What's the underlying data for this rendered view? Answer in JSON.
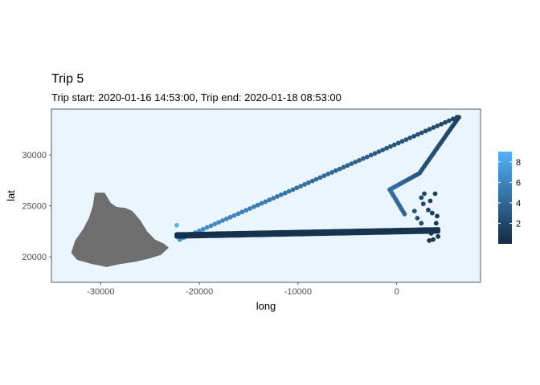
{
  "chart_data": {
    "type": "scatter",
    "title": "Trip 5",
    "subtitle": "Trip start: 2020-01-16 14:53:00, Trip end: 2020-01-18 08:53:00",
    "xlabel": "long",
    "ylabel": "lat",
    "xlim": [
      -35000,
      8500
    ],
    "ylim": [
      17500,
      34500
    ],
    "x_ticks": [
      -30000,
      -20000,
      -10000,
      0
    ],
    "y_ticks": [
      20000,
      25000,
      30000
    ],
    "x_tick_labels": [
      "-30000",
      "-20000",
      "-10000",
      "0"
    ],
    "y_tick_labels": [
      "20000",
      "25000",
      "30000"
    ],
    "panel_background": "#ebf5fe",
    "grid": false,
    "legend": {
      "type": "colorbar",
      "placement": "right",
      "range": [
        0,
        9
      ],
      "ticks": [
        2,
        4,
        6,
        8
      ],
      "tick_labels": [
        "2",
        "4",
        "6",
        "8"
      ],
      "low_color": "#132b43",
      "high_color": "#56b1f7"
    },
    "land_color": "#6e6e6e",
    "island_outline": [
      [
        -30600,
        26300
      ],
      [
        -29600,
        26300
      ],
      [
        -29300,
        25800
      ],
      [
        -29000,
        25300
      ],
      [
        -28400,
        24900
      ],
      [
        -27500,
        24800
      ],
      [
        -26800,
        24500
      ],
      [
        -26000,
        23600
      ],
      [
        -25300,
        22500
      ],
      [
        -24500,
        21700
      ],
      [
        -23600,
        21300
      ],
      [
        -23100,
        20900
      ],
      [
        -23900,
        20200
      ],
      [
        -25200,
        19800
      ],
      [
        -26600,
        19500
      ],
      [
        -28000,
        19300
      ],
      [
        -29400,
        19000
      ],
      [
        -30900,
        19300
      ],
      [
        -32400,
        19700
      ],
      [
        -33000,
        20400
      ],
      [
        -32600,
        21600
      ],
      [
        -31800,
        22700
      ],
      [
        -31200,
        23800
      ],
      [
        -30800,
        25000
      ]
    ],
    "series": [
      {
        "segments": [
          {
            "from": [
              -22000,
              21700
            ],
            "to": [
              6100,
              33700
            ],
            "n": 72,
            "color_from": 7,
            "color_to": 1.7
          },
          {
            "from": [
              6300,
              33700
            ],
            "to": [
              2300,
              28200
            ],
            "n": 26,
            "color_from": 1.5,
            "color_to": 2.8
          },
          {
            "from": [
              2300,
              28200
            ],
            "to": [
              -700,
              26600
            ],
            "n": 16,
            "color_from": 2.8,
            "color_to": 4.6
          },
          {
            "from": [
              -700,
              26600
            ],
            "to": [
              800,
              24200
            ],
            "n": 12,
            "color_from": 4.6,
            "color_to": 4.0
          },
          {
            "from": [
              4200,
              22700
            ],
            "to": [
              -22300,
              22200
            ],
            "n": 140,
            "color_from": 0.6,
            "color_to": 0.4
          },
          {
            "from": [
              -22300,
              22000
            ],
            "to": [
              4200,
              22500
            ],
            "n": 140,
            "color_from": 0.4,
            "color_to": 0.6
          }
        ],
        "points": [
          {
            "x": -22300,
            "y": 23100,
            "v": 9
          },
          {
            "x": 1800,
            "y": 24500,
            "v": 2.5
          },
          {
            "x": 2100,
            "y": 23800,
            "v": 2.3
          },
          {
            "x": 2500,
            "y": 23300,
            "v": 2.1
          },
          {
            "x": 2700,
            "y": 25200,
            "v": 2.0
          },
          {
            "x": 2500,
            "y": 25800,
            "v": 1.8
          },
          {
            "x": 2800,
            "y": 26200,
            "v": 1.7
          },
          {
            "x": 3200,
            "y": 24600,
            "v": 1.5
          },
          {
            "x": 3600,
            "y": 24300,
            "v": 1.2
          },
          {
            "x": 3400,
            "y": 25500,
            "v": 1.4
          },
          {
            "x": 3900,
            "y": 26200,
            "v": 1.2
          },
          {
            "x": 4100,
            "y": 24000,
            "v": 1.1
          },
          {
            "x": 4000,
            "y": 23300,
            "v": 1.0
          },
          {
            "x": 3500,
            "y": 22300,
            "v": 0.9
          },
          {
            "x": 3300,
            "y": 21600,
            "v": 0.8
          },
          {
            "x": 3700,
            "y": 21700,
            "v": 0.8
          },
          {
            "x": 4200,
            "y": 22000,
            "v": 0.7
          }
        ]
      }
    ]
  }
}
